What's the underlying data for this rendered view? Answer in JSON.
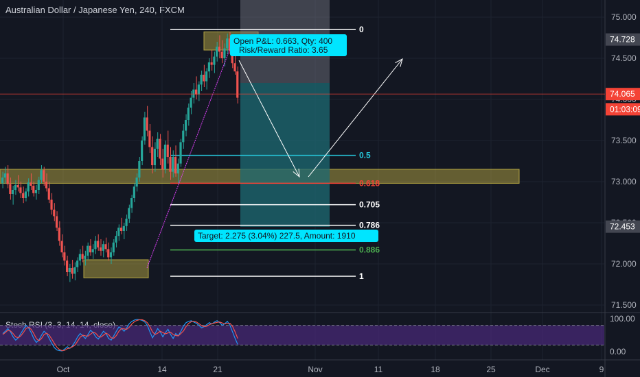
{
  "header": {
    "title": "Australian Dollar / Japanese Yen, 240, FXCM"
  },
  "colors": {
    "background": "#131722",
    "grid": "#1e2330",
    "up_candle": "#26a69a",
    "down_candle": "#ef5350",
    "zone_fill": "#b5a642",
    "projection_fill": "#1e6b73",
    "stoch_band": "#4a2a7a",
    "stoch_k": "#2196f3",
    "stoch_d": "#ef5350",
    "price_tag": "#f44336",
    "target_tag": "#00e5ff",
    "fib_886": "#4caf50",
    "fib_618": "#f44336",
    "fib_05": "#26c6da"
  },
  "chart_data": [
    {
      "type": "candlestick",
      "title": "Australian Dollar / Japanese Yen, 240, FXCM",
      "ylim": [
        71.4,
        75.2
      ],
      "y_ticks": [
        "75.000",
        "74.500",
        "74.000",
        "73.500",
        "73.000",
        "72.500",
        "72.000",
        "71.500"
      ],
      "x_ticks": [
        "Oct",
        "14",
        "21",
        "Nov",
        "11",
        "18",
        "25",
        "Dec",
        "9"
      ],
      "price_labels": [
        {
          "text": "74.728",
          "value": 74.728,
          "style": "gray"
        },
        {
          "text": "74.065",
          "value": 74.065,
          "style": "red"
        },
        {
          "text": "01:03:09",
          "value": 73.88,
          "style": "red"
        },
        {
          "text": "72.453",
          "value": 72.453,
          "style": "gray"
        }
      ],
      "fib_levels": [
        {
          "label": "0",
          "value": 74.85,
          "color": "#ffffff"
        },
        {
          "label": "0.5",
          "value": 73.32,
          "color": "#26c6da"
        },
        {
          "label": "0.618",
          "value": 72.98,
          "color": "#f44336"
        },
        {
          "label": "0.705",
          "value": 72.72,
          "color": "#ffffff"
        },
        {
          "label": "0.786",
          "value": 72.47,
          "color": "#ffffff"
        },
        {
          "label": "0.886",
          "value": 72.17,
          "color": "#4caf50"
        },
        {
          "label": "1",
          "value": 71.85,
          "color": "#ffffff"
        }
      ],
      "zones": [
        {
          "x": [
            "2019-10-13",
            "2019-10-31"
          ],
          "y": [
            72.98,
            73.15
          ]
        },
        {
          "x": [
            "2019-09-30",
            "2019-10-12"
          ],
          "y": [
            71.83,
            72.05
          ]
        },
        {
          "x": [
            "2019-10-20",
            "2019-10-24"
          ],
          "y": [
            74.6,
            74.82
          ]
        }
      ],
      "candles_4h": [
        [
          72.98,
          73.12,
          72.92,
          73.05
        ],
        [
          73.05,
          73.18,
          72.98,
          73.1
        ],
        [
          73.1,
          73.2,
          72.92,
          72.97
        ],
        [
          72.97,
          73.05,
          72.78,
          72.85
        ],
        [
          72.85,
          72.95,
          72.72,
          72.9
        ],
        [
          72.9,
          73.02,
          72.84,
          72.96
        ],
        [
          72.96,
          73.08,
          72.88,
          72.93
        ],
        [
          72.93,
          73.0,
          72.8,
          72.86
        ],
        [
          72.86,
          72.94,
          72.74,
          72.8
        ],
        [
          72.8,
          72.92,
          72.76,
          72.88
        ],
        [
          72.88,
          73.04,
          72.82,
          72.99
        ],
        [
          72.99,
          73.1,
          72.9,
          72.95
        ],
        [
          72.95,
          73.0,
          72.82,
          72.86
        ],
        [
          72.86,
          72.96,
          72.78,
          72.9
        ],
        [
          72.9,
          73.06,
          72.85,
          73.02
        ],
        [
          73.02,
          73.2,
          72.98,
          73.14
        ],
        [
          73.14,
          73.18,
          72.95,
          73.0
        ],
        [
          73.0,
          73.1,
          72.88,
          72.92
        ],
        [
          72.92,
          73.0,
          72.74,
          72.78
        ],
        [
          72.78,
          72.86,
          72.6,
          72.66
        ],
        [
          72.66,
          72.74,
          72.52,
          72.58
        ],
        [
          72.58,
          72.64,
          72.4,
          72.44
        ],
        [
          72.44,
          72.52,
          72.22,
          72.28
        ],
        [
          72.28,
          72.36,
          72.08,
          72.14
        ],
        [
          72.14,
          72.22,
          71.98,
          72.04
        ],
        [
          72.04,
          72.1,
          71.85,
          71.9
        ],
        [
          71.9,
          72.0,
          71.78,
          71.95
        ],
        [
          71.95,
          72.05,
          71.82,
          71.88
        ],
        [
          71.88,
          72.02,
          71.8,
          71.96
        ],
        [
          71.96,
          72.08,
          71.9,
          72.04
        ],
        [
          72.04,
          72.18,
          71.98,
          72.12
        ],
        [
          72.12,
          72.22,
          72.02,
          72.06
        ],
        [
          72.06,
          72.16,
          71.98,
          72.1
        ],
        [
          72.1,
          72.26,
          72.05,
          72.22
        ],
        [
          72.22,
          72.3,
          72.1,
          72.14
        ],
        [
          72.14,
          72.24,
          72.06,
          72.18
        ],
        [
          72.18,
          72.34,
          72.12,
          72.28
        ],
        [
          72.28,
          72.36,
          72.16,
          72.2
        ],
        [
          72.2,
          72.3,
          72.1,
          72.16
        ],
        [
          72.16,
          72.28,
          72.08,
          72.24
        ],
        [
          72.24,
          72.32,
          72.14,
          72.18
        ],
        [
          72.18,
          72.26,
          72.04,
          72.08
        ],
        [
          72.08,
          72.2,
          72.0,
          72.14
        ],
        [
          72.14,
          72.3,
          72.1,
          72.26
        ],
        [
          72.26,
          72.4,
          72.2,
          72.34
        ],
        [
          72.34,
          72.48,
          72.28,
          72.44
        ],
        [
          72.44,
          72.56,
          72.36,
          72.4
        ],
        [
          72.4,
          72.5,
          72.3,
          72.46
        ],
        [
          72.46,
          72.6,
          72.4,
          72.55
        ],
        [
          72.55,
          72.72,
          72.5,
          72.68
        ],
        [
          72.68,
          72.84,
          72.62,
          72.8
        ],
        [
          72.8,
          72.98,
          72.75,
          72.94
        ],
        [
          72.94,
          73.1,
          72.88,
          73.05
        ],
        [
          73.05,
          73.3,
          73.0,
          73.25
        ],
        [
          73.25,
          73.55,
          73.2,
          73.5
        ],
        [
          73.5,
          73.85,
          73.45,
          73.78
        ],
        [
          73.78,
          73.92,
          73.55,
          73.62
        ],
        [
          73.62,
          73.7,
          73.35,
          73.42
        ],
        [
          73.42,
          73.55,
          73.1,
          73.2
        ],
        [
          73.2,
          73.48,
          73.12,
          73.4
        ],
        [
          73.4,
          73.6,
          73.3,
          73.52
        ],
        [
          73.52,
          73.58,
          73.2,
          73.28
        ],
        [
          73.28,
          73.4,
          73.05,
          73.15
        ],
        [
          73.15,
          73.5,
          73.1,
          73.45
        ],
        [
          73.45,
          73.62,
          73.22,
          73.3
        ],
        [
          73.3,
          73.42,
          73.02,
          73.12
        ],
        [
          73.12,
          73.38,
          73.05,
          73.3
        ],
        [
          73.3,
          73.44,
          73.06,
          73.1
        ],
        [
          73.1,
          73.28,
          72.98,
          73.22
        ],
        [
          73.22,
          73.52,
          73.18,
          73.48
        ],
        [
          73.48,
          73.7,
          73.4,
          73.62
        ],
        [
          73.62,
          73.82,
          73.55,
          73.75
        ],
        [
          73.75,
          73.95,
          73.68,
          73.9
        ],
        [
          73.9,
          74.1,
          73.82,
          74.02
        ],
        [
          74.02,
          74.2,
          73.95,
          74.12
        ],
        [
          74.12,
          74.28,
          74.0,
          74.06
        ],
        [
          74.06,
          74.22,
          73.98,
          74.18
        ],
        [
          74.18,
          74.35,
          74.1,
          74.3
        ],
        [
          74.3,
          74.42,
          74.15,
          74.22
        ],
        [
          74.22,
          74.38,
          74.12,
          74.34
        ],
        [
          74.34,
          74.5,
          74.26,
          74.45
        ],
        [
          74.45,
          74.6,
          74.35,
          74.42
        ],
        [
          74.42,
          74.58,
          74.32,
          74.52
        ],
        [
          74.52,
          74.7,
          74.46,
          74.64
        ],
        [
          74.64,
          74.78,
          74.5,
          74.58
        ],
        [
          74.58,
          74.72,
          74.44,
          74.5
        ],
        [
          74.5,
          74.68,
          74.4,
          74.62
        ],
        [
          74.62,
          74.8,
          74.55,
          74.74
        ],
        [
          74.74,
          74.82,
          74.55,
          74.6
        ],
        [
          74.6,
          74.7,
          74.38,
          74.44
        ],
        [
          74.44,
          74.56,
          74.3,
          74.34
        ],
        [
          74.34,
          74.4,
          73.95,
          74.02
        ]
      ],
      "trade_box": {
        "x": [
          "2019-10-24",
          "2019-11-01"
        ],
        "entry": 74.2,
        "target": 72.45,
        "stop": 75.2
      },
      "trendline": {
        "from": [
          "2019-10-12",
          71.85
        ],
        "to": [
          "2019-10-24",
          74.8
        ]
      },
      "arrows": [
        {
          "from": [
            "2019-10-23",
            74.6
          ],
          "to": [
            "2019-10-29",
            73.05
          ]
        },
        {
          "from": [
            "2019-10-29",
            73.05
          ],
          "to": [
            "2019-11-09",
            74.5
          ]
        }
      ],
      "annotations": [
        {
          "lines": [
            "Open P&L: 0.663, Qty: 400",
            "Risk/Reward Ratio: 3.65"
          ]
        },
        {
          "lines": [
            "Target: 2.275 (3.04%) 227.5, Amount: 1910"
          ]
        }
      ]
    },
    {
      "type": "line",
      "title": "Stoch RSI (3, 3, 14, 14, close)",
      "ylim": [
        0,
        100
      ],
      "y_ticks": [
        "100.00",
        "0.00"
      ],
      "band": [
        20,
        80
      ],
      "series": [
        {
          "values": [
            55,
            62,
            70,
            60,
            45,
            35,
            42,
            55,
            68,
            80,
            72,
            58,
            40,
            28,
            35,
            50,
            62,
            55,
            40,
            25,
            12,
            5,
            3,
            2,
            8,
            15,
            10,
            18,
            30,
            45,
            55,
            48,
            40,
            52,
            65,
            58,
            45,
            38,
            50,
            62,
            55,
            40,
            35,
            48,
            62,
            75,
            70,
            62,
            72,
            85,
            92,
            96,
            98,
            97,
            95,
            90,
            80,
            60,
            42,
            55,
            70,
            60,
            45,
            58,
            68,
            52,
            40,
            55,
            48,
            62,
            78,
            88,
            92,
            94,
            90,
            86,
            80,
            72,
            76,
            82,
            88,
            84,
            90,
            94,
            88,
            80,
            85,
            92,
            80,
            60,
            40,
            22
          ]
        },
        {
          "values": [
            52,
            58,
            65,
            63,
            55,
            45,
            42,
            48,
            58,
            70,
            74,
            68,
            55,
            40,
            33,
            40,
            52,
            56,
            50,
            38,
            25,
            13,
            6,
            3,
            4,
            9,
            11,
            15,
            20,
            32,
            44,
            50,
            48,
            47,
            53,
            59,
            56,
            47,
            44,
            50,
            56,
            52,
            42,
            41,
            49,
            62,
            70,
            69,
            68,
            74,
            84,
            91,
            95,
            97,
            97,
            94,
            88,
            76,
            60,
            52,
            56,
            62,
            58,
            54,
            57,
            59,
            52,
            49,
            48,
            55,
            63,
            76,
            86,
            91,
            92,
            90,
            85,
            79,
            76,
            77,
            82,
            85,
            87,
            89,
            90,
            87,
            84,
            86,
            86,
            77,
            60,
            40
          ]
        }
      ]
    }
  ]
}
